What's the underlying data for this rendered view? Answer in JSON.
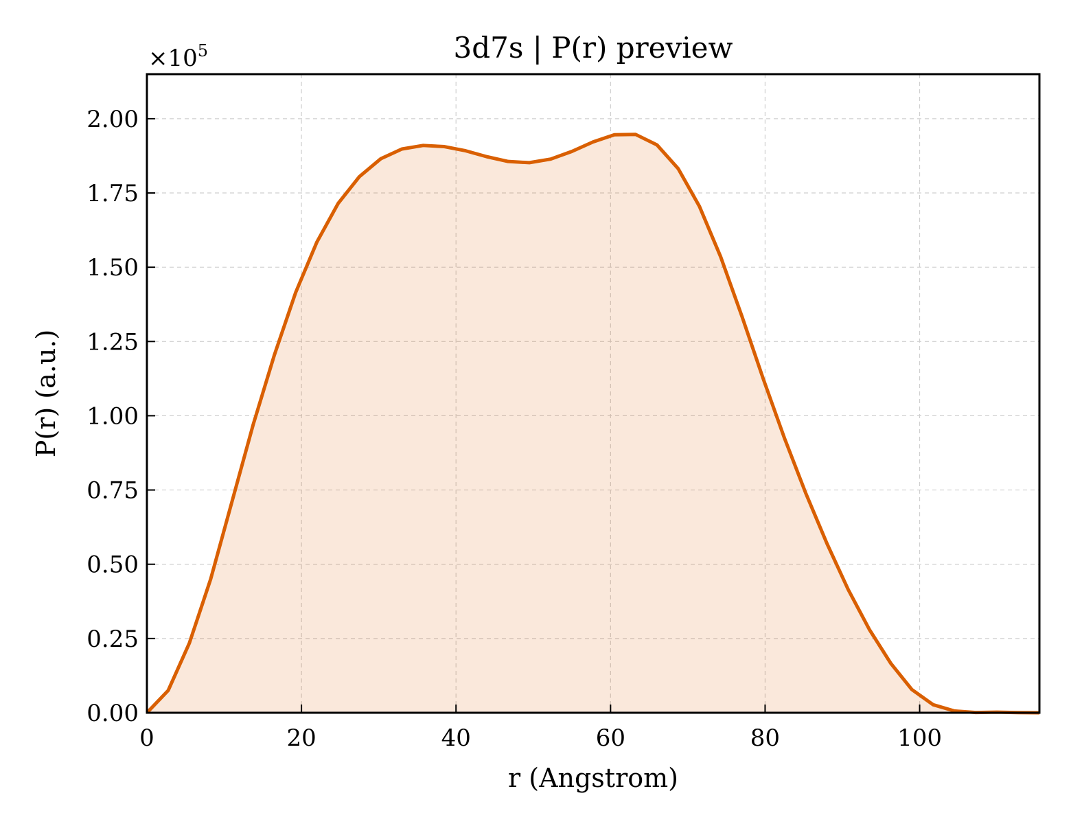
{
  "chart_data": {
    "type": "area",
    "title": "3d7s | P(r) preview",
    "xlabel": "r (Angstrom)",
    "ylabel": "P(r) (a.u.)",
    "y_multiplier_label": "×10",
    "y_multiplier_exponent": "5",
    "xlim": [
      0,
      115.5
    ],
    "ylim": [
      0,
      2.15
    ],
    "xticks": [
      0,
      20,
      40,
      60,
      80,
      100
    ],
    "xtick_labels": [
      "0",
      "20",
      "40",
      "60",
      "80",
      "100"
    ],
    "yticks": [
      0,
      0.25,
      0.5,
      0.75,
      1.0,
      1.25,
      1.5,
      1.75,
      2.0
    ],
    "ytick_labels": [
      "0.00",
      "0.25",
      "0.50",
      "0.75",
      "1.00",
      "1.25",
      "1.50",
      "1.75",
      "2.00"
    ],
    "grid": true,
    "line_color": "#d95f02",
    "fill_color": "#d95f02",
    "fill_opacity": 0.14,
    "series": [
      {
        "x": [
          0,
          2.75,
          5.5,
          8.25,
          11.0,
          13.75,
          16.5,
          19.25,
          22.0,
          24.75,
          27.5,
          30.25,
          33.0,
          35.75,
          38.5,
          41.25,
          44.0,
          46.75,
          49.5,
          52.25,
          55.0,
          57.75,
          60.5,
          63.25,
          66.0,
          68.75,
          71.5,
          74.25,
          77.0,
          79.75,
          82.5,
          85.25,
          88.0,
          90.75,
          93.5,
          96.25,
          99.0,
          101.75,
          104.5,
          107.25,
          110.0,
          112.75,
          115.5
        ],
        "values": [
          0.0,
          0.075,
          0.235,
          0.45,
          0.71,
          0.97,
          1.205,
          1.415,
          1.585,
          1.715,
          1.805,
          1.865,
          1.898,
          1.91,
          1.906,
          1.892,
          1.872,
          1.856,
          1.852,
          1.864,
          1.89,
          1.922,
          1.946,
          1.947,
          1.912,
          1.832,
          1.705,
          1.535,
          1.335,
          1.125,
          0.925,
          0.74,
          0.57,
          0.415,
          0.28,
          0.167,
          0.078,
          0.027,
          0.006,
          0.001,
          0.002,
          0.0005,
          0.0
        ]
      }
    ]
  }
}
